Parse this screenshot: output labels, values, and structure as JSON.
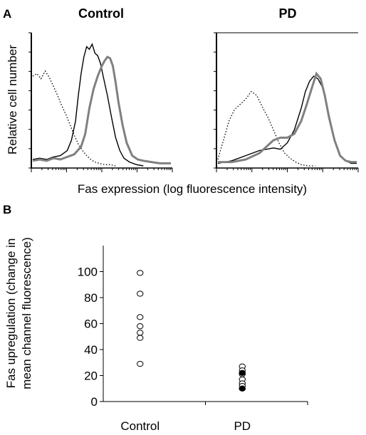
{
  "figure": {
    "panel_a_letter": "A",
    "panel_b_letter": "B",
    "panel_a_ylabel": "Relative cell number",
    "panel_a_xlabel": "Fas expression (log fluorescence intensity)",
    "panel_b_ylabel_line1": "Fas upregulation (change in",
    "panel_b_ylabel_line2": "mean channel fluorescence)"
  },
  "colors": {
    "black_histogram": "#000000",
    "grey_histogram": "#808080",
    "dotted_histogram": "#000000"
  },
  "chart_data": [
    {
      "type": "line",
      "title": "Control",
      "xlabel": "Fas expression (log fluorescence intensity)",
      "ylabel": "Relative cell number",
      "x_scale": "log",
      "grid": false,
      "legend": "none",
      "series": [
        {
          "style": "dotted",
          "color": "#000000",
          "x": [
            0.0,
            0.03,
            0.06,
            0.09,
            0.12,
            0.15,
            0.18,
            0.21,
            0.24,
            0.27,
            0.3,
            0.33,
            0.36,
            0.39,
            0.42,
            0.45,
            0.48,
            0.52,
            0.56,
            0.6
          ],
          "values": [
            0.7,
            0.72,
            0.68,
            0.74,
            0.69,
            0.62,
            0.55,
            0.47,
            0.4,
            0.32,
            0.24,
            0.17,
            0.12,
            0.08,
            0.05,
            0.03,
            0.02,
            0.01,
            0.01,
            0.0
          ]
        },
        {
          "style": "solid",
          "color": "#000000",
          "x": [
            0.0,
            0.05,
            0.1,
            0.15,
            0.2,
            0.25,
            0.28,
            0.31,
            0.33,
            0.35,
            0.37,
            0.39,
            0.41,
            0.43,
            0.45,
            0.47,
            0.49,
            0.51,
            0.54,
            0.57,
            0.6,
            0.63,
            0.66,
            0.7,
            0.75,
            0.8
          ],
          "values": [
            0.05,
            0.06,
            0.05,
            0.07,
            0.08,
            0.12,
            0.2,
            0.35,
            0.55,
            0.72,
            0.85,
            0.93,
            0.91,
            0.95,
            0.88,
            0.86,
            0.8,
            0.7,
            0.55,
            0.38,
            0.22,
            0.12,
            0.06,
            0.03,
            0.01,
            0.0
          ]
        },
        {
          "style": "solid-thick",
          "color": "#808080",
          "x": [
            0.0,
            0.05,
            0.1,
            0.15,
            0.2,
            0.25,
            0.3,
            0.35,
            0.38,
            0.41,
            0.44,
            0.47,
            0.5,
            0.52,
            0.54,
            0.56,
            0.58,
            0.6,
            0.62,
            0.65,
            0.68,
            0.72,
            0.76,
            0.8,
            0.86,
            0.92,
            1.0
          ],
          "values": [
            0.04,
            0.05,
            0.04,
            0.06,
            0.05,
            0.07,
            0.09,
            0.15,
            0.25,
            0.45,
            0.6,
            0.7,
            0.78,
            0.82,
            0.85,
            0.84,
            0.78,
            0.65,
            0.5,
            0.32,
            0.18,
            0.08,
            0.05,
            0.04,
            0.03,
            0.02,
            0.02
          ]
        }
      ]
    },
    {
      "type": "line",
      "title": "PD",
      "xlabel": "Fas expression (log fluorescence intensity)",
      "ylabel": "Relative cell number",
      "x_scale": "log",
      "grid": false,
      "legend": "none",
      "series": [
        {
          "style": "dotted",
          "color": "#000000",
          "x": [
            0.0,
            0.04,
            0.08,
            0.12,
            0.16,
            0.2,
            0.24,
            0.28,
            0.32,
            0.36,
            0.4,
            0.44,
            0.48,
            0.52,
            0.56,
            0.6,
            0.65,
            0.7
          ],
          "values": [
            0.05,
            0.2,
            0.35,
            0.44,
            0.48,
            0.52,
            0.58,
            0.55,
            0.46,
            0.38,
            0.28,
            0.18,
            0.1,
            0.06,
            0.03,
            0.01,
            0.0,
            0.0
          ]
        },
        {
          "style": "solid",
          "color": "#000000",
          "x": [
            0.0,
            0.1,
            0.2,
            0.3,
            0.4,
            0.45,
            0.5,
            0.55,
            0.6,
            0.63,
            0.66,
            0.69,
            0.72,
            0.75,
            0.78,
            0.81,
            0.84,
            0.88,
            0.92,
            0.96,
            1.0
          ],
          "values": [
            0.02,
            0.04,
            0.08,
            0.12,
            0.14,
            0.13,
            0.18,
            0.28,
            0.45,
            0.58,
            0.66,
            0.7,
            0.68,
            0.62,
            0.5,
            0.35,
            0.2,
            0.08,
            0.04,
            0.02,
            0.02
          ]
        },
        {
          "style": "solid-thick",
          "color": "#808080",
          "x": [
            0.0,
            0.1,
            0.2,
            0.3,
            0.4,
            0.45,
            0.5,
            0.55,
            0.6,
            0.64,
            0.68,
            0.71,
            0.74,
            0.77,
            0.8,
            0.84,
            0.88,
            0.92,
            0.96,
            1.0
          ],
          "values": [
            0.03,
            0.03,
            0.05,
            0.1,
            0.2,
            0.22,
            0.22,
            0.25,
            0.35,
            0.48,
            0.62,
            0.72,
            0.68,
            0.55,
            0.38,
            0.2,
            0.08,
            0.04,
            0.03,
            0.03
          ]
        }
      ]
    },
    {
      "type": "scatter",
      "title": "",
      "categories": [
        "Control",
        "PD"
      ],
      "ylabel": "Fas upregulation (change in mean channel fluorescence)",
      "ylim": [
        0,
        120
      ],
      "yticks": [
        "0",
        "20",
        "40",
        "60",
        "80",
        "100"
      ],
      "grid": false,
      "legend": "none",
      "series": [
        {
          "category": "Control",
          "marker": "open-circle",
          "values": [
            99,
            83,
            65,
            58,
            53,
            49,
            29
          ]
        },
        {
          "category": "PD",
          "marker": "open-circle",
          "values": [
            27,
            24,
            22,
            21,
            17,
            14,
            12,
            10
          ]
        },
        {
          "category": "PD",
          "marker": "filled-circle",
          "values": [
            22,
            10
          ]
        }
      ]
    }
  ]
}
